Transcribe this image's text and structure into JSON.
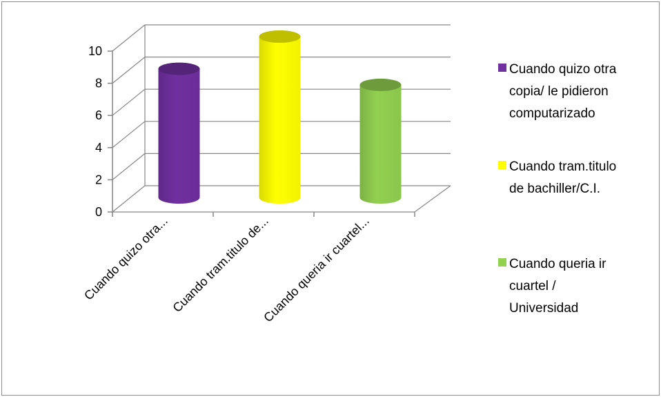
{
  "chart_data": {
    "type": "bar",
    "style": "3d-cylinder",
    "categories": [
      "Cuando quizo otra...",
      "Cuando tram.titulo de...",
      "Cuando queria ir cuartel..."
    ],
    "values": [
      8,
      10,
      7
    ],
    "ylim": [
      0,
      10
    ],
    "yticks": [
      0,
      2,
      4,
      6,
      8,
      10
    ],
    "grid": true,
    "legend_position": "right",
    "legend": [
      {
        "lines": [
          "Cuando quizo otra",
          "copia/ le pidieron",
          "computarizado"
        ],
        "color": "#7030A0"
      },
      {
        "lines": [
          "Cuando tram.titulo",
          "de bachiller/C.I."
        ],
        "color": "#FFFF00"
      },
      {
        "lines": [
          "Cuando queria ir",
          "cuartel /",
          "Universidad"
        ],
        "color": "#92D050"
      }
    ],
    "colors": [
      "#7030A0",
      "#FFFF00",
      "#92D050"
    ]
  }
}
